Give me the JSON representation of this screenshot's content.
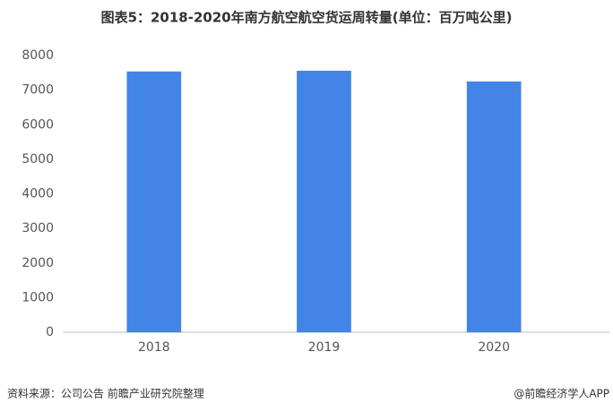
{
  "chart_data": {
    "type": "bar",
    "title": "图表5：2018-2020年南方航空航空货运周转量(单位：百万吨公里)",
    "categories": [
      "2018",
      "2019",
      "2020"
    ],
    "values": [
      7540,
      7560,
      7250
    ],
    "color": "#4285e6",
    "ylim": [
      0,
      8000
    ],
    "yticks": [
      0,
      1000,
      2000,
      3000,
      4000,
      5000,
      6000,
      7000,
      8000
    ],
    "grid": false,
    "source": "资料来源：公司公告 前瞻产业研究院整理",
    "credit": "@前瞻经济学人APP"
  }
}
